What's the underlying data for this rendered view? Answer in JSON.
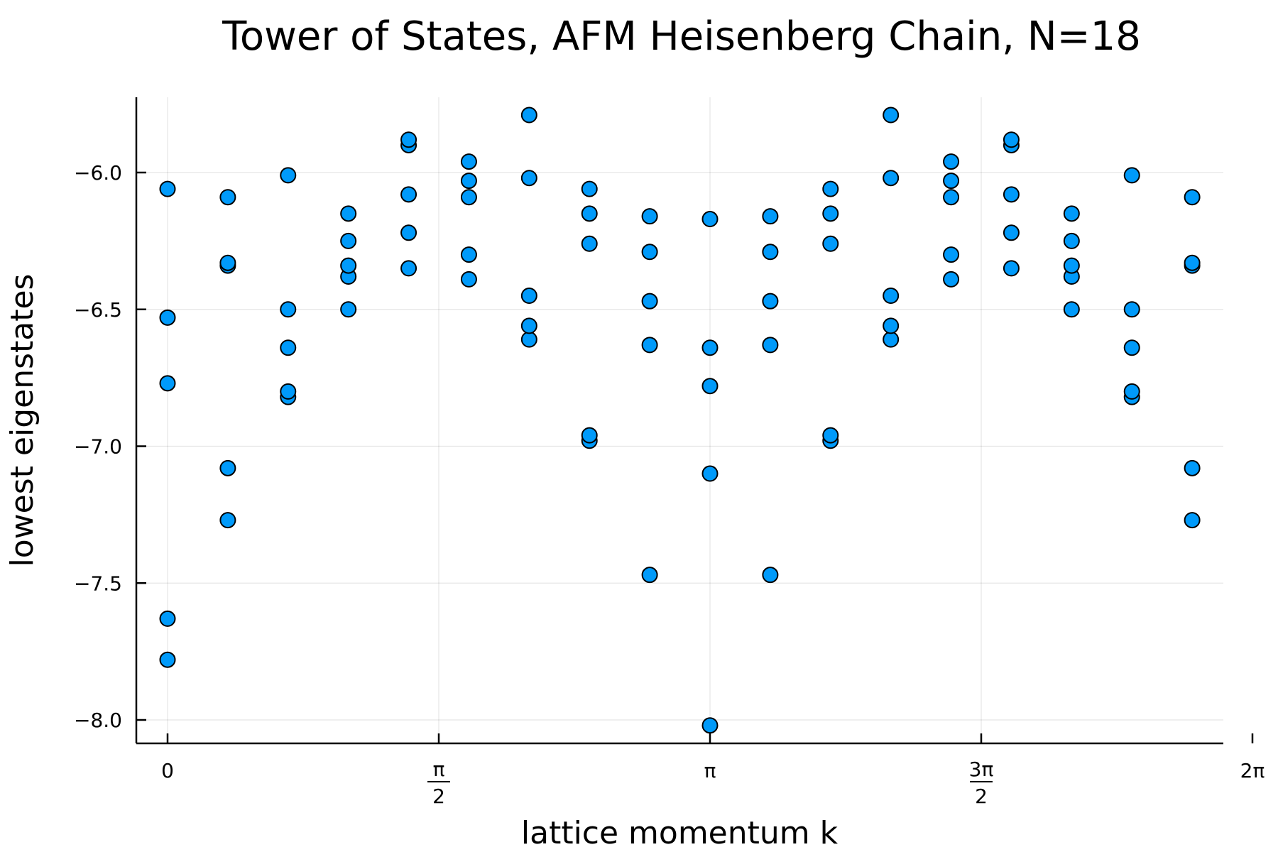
{
  "chart_data": {
    "type": "scatter",
    "title": "Tower of States, AFM Heisenberg Chain, N=18",
    "xlabel": "lattice momentum k",
    "ylabel": "lowest eigenstates",
    "xlim": [
      -0.1309,
      6.2832
    ],
    "ylim": [
      -8.09,
      -5.73
    ],
    "legend": "none",
    "grid": true,
    "marker_color": "#009AFA",
    "marker_edge_color": "#000000",
    "xticks": [
      {
        "value": 0,
        "num": "0",
        "den": ""
      },
      {
        "value": 1.5708,
        "num": "π",
        "den": "2"
      },
      {
        "value": 3.1416,
        "num": "π",
        "den": ""
      },
      {
        "value": 4.7124,
        "num": "3π",
        "den": "2"
      },
      {
        "value": 6.2832,
        "num": "2π",
        "den": ""
      }
    ],
    "yticks": [
      {
        "value": -8.0,
        "label": "−8.0"
      },
      {
        "value": -7.5,
        "label": "−7.5"
      },
      {
        "value": -7.0,
        "label": "−7.0"
      },
      {
        "value": -6.5,
        "label": "−6.5"
      },
      {
        "value": -6.0,
        "label": "−6.0"
      }
    ],
    "series": [
      {
        "points": [
          {
            "x": 0.0,
            "y": [
              -7.78,
              -7.63,
              -6.77,
              -6.53,
              -6.06
            ]
          },
          {
            "x": 0.3491,
            "y": [
              -7.27,
              -7.08,
              -6.34,
              -6.33,
              -6.09
            ]
          },
          {
            "x": 0.6981,
            "y": [
              -6.82,
              -6.8,
              -6.64,
              -6.5,
              -6.01
            ]
          },
          {
            "x": 1.0472,
            "y": [
              -6.5,
              -6.38,
              -6.34,
              -6.25,
              -6.15
            ]
          },
          {
            "x": 1.3963,
            "y": [
              -6.35,
              -6.22,
              -6.08,
              -5.9,
              -5.88
            ]
          },
          {
            "x": 1.7453,
            "y": [
              -6.39,
              -6.3,
              -6.09,
              -6.03,
              -5.96
            ]
          },
          {
            "x": 2.0944,
            "y": [
              -6.61,
              -6.56,
              -6.45,
              -6.02,
              -5.79
            ]
          },
          {
            "x": 2.4435,
            "y": [
              -6.98,
              -6.96,
              -6.26,
              -6.15,
              -6.06
            ]
          },
          {
            "x": 2.7925,
            "y": [
              -7.47,
              -6.63,
              -6.47,
              -6.29,
              -6.16
            ]
          },
          {
            "x": 3.1416,
            "y": [
              -8.02,
              -7.1,
              -6.78,
              -6.64,
              -6.17
            ]
          },
          {
            "x": 3.4907,
            "y": [
              -7.47,
              -6.63,
              -6.47,
              -6.29,
              -6.16
            ]
          },
          {
            "x": 3.8397,
            "y": [
              -6.98,
              -6.96,
              -6.26,
              -6.15,
              -6.06
            ]
          },
          {
            "x": 4.1888,
            "y": [
              -6.61,
              -6.56,
              -6.45,
              -6.02,
              -5.79
            ]
          },
          {
            "x": 4.5379,
            "y": [
              -6.39,
              -6.3,
              -6.09,
              -6.03,
              -5.96
            ]
          },
          {
            "x": 4.8869,
            "y": [
              -6.35,
              -6.22,
              -6.08,
              -5.9,
              -5.88
            ]
          },
          {
            "x": 5.236,
            "y": [
              -6.5,
              -6.38,
              -6.34,
              -6.25,
              -6.15
            ]
          },
          {
            "x": 5.5851,
            "y": [
              -6.82,
              -6.8,
              -6.64,
              -6.5,
              -6.01
            ]
          },
          {
            "x": 5.9341,
            "y": [
              -7.27,
              -7.08,
              -6.34,
              -6.33,
              -6.09
            ]
          }
        ]
      }
    ]
  }
}
